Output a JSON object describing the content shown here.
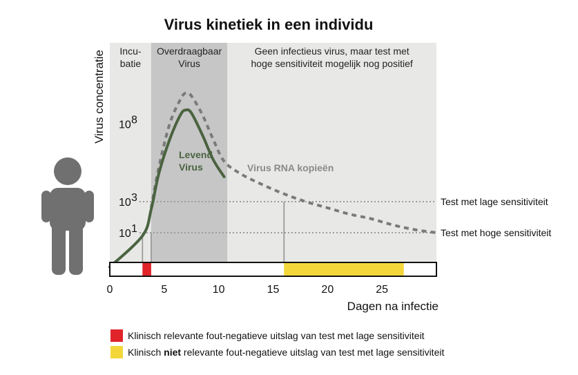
{
  "chart_data": {
    "type": "line",
    "title": "Virus kinetiek in een individu",
    "xlabel": "Dagen na infectie",
    "ylabel": "Virus concentratie",
    "xlim": [
      0,
      30
    ],
    "x_ticks": [
      0,
      5,
      10,
      15,
      20,
      25
    ],
    "y_ticks": [
      {
        "base": "10",
        "exp": "1",
        "log": 1
      },
      {
        "base": "10",
        "exp": "3",
        "log": 3
      },
      {
        "base": "10",
        "exp": "8",
        "log": 8
      }
    ],
    "phases": [
      {
        "lines": [
          "Incu-",
          "batie"
        ],
        "start": 0,
        "end": 3.8,
        "shade": "#e8e8e6"
      },
      {
        "lines": [
          "Overdraagbaar",
          "Virus"
        ],
        "start": 3.8,
        "end": 10.8,
        "shade": "#c6c6c6"
      },
      {
        "lines": [
          "Geen infectieus virus, maar test met",
          "hoge sensitiviteit mogelijk nog positief"
        ],
        "start": 10.8,
        "end": 30,
        "shade": "#e8e8e6"
      }
    ],
    "series": [
      {
        "name": "Levend Virus",
        "label_lines": [
          "Levend",
          "Virus"
        ],
        "style": "solid",
        "color": "#4a6340",
        "points": [
          [
            0,
            -1.2
          ],
          [
            3,
            0.8
          ],
          [
            3.8,
            2.5
          ],
          [
            4.5,
            4.8
          ],
          [
            5.5,
            7.0
          ],
          [
            6.5,
            8.6
          ],
          [
            7,
            8.9
          ],
          [
            7.5,
            8.7
          ],
          [
            8.5,
            7.3
          ],
          [
            9.5,
            5.7
          ],
          [
            10.5,
            4.6
          ]
        ]
      },
      {
        "name": "Virus RNA kopieën",
        "label_lines": [
          "Virus RNA kopieën"
        ],
        "style": "dashed",
        "color": "#7a7a7a",
        "points": [
          [
            3.8,
            2.6
          ],
          [
            4.5,
            5.2
          ],
          [
            5.5,
            8.0
          ],
          [
            6.5,
            9.6
          ],
          [
            7,
            10.0
          ],
          [
            7.5,
            9.8
          ],
          [
            8.5,
            8.6
          ],
          [
            9.5,
            7.0
          ],
          [
            10.5,
            5.6
          ],
          [
            12,
            4.8
          ],
          [
            14,
            4.1
          ],
          [
            16,
            3.5
          ],
          [
            18,
            3.0
          ],
          [
            20,
            2.6
          ],
          [
            22,
            2.2
          ],
          [
            24,
            1.9
          ],
          [
            26,
            1.5
          ],
          [
            28,
            1.2
          ],
          [
            30,
            1.0
          ]
        ]
      }
    ],
    "thresholds": [
      {
        "label": "Test met lage sensitiviteit",
        "value": 3
      },
      {
        "label": "Test met hoge sensitiviteit",
        "value": 1
      }
    ],
    "timeline": {
      "bands": [
        {
          "start": 3.0,
          "end": 3.8,
          "color": "#e0242a"
        },
        {
          "start": 16.0,
          "end": 27.0,
          "color": "#f3d73a"
        }
      ],
      "markers": [
        3.0,
        3.8,
        16.0
      ]
    },
    "legend": [
      {
        "color": "#e0242a",
        "pre": "Klinisch relevante fout-negatieve uitslag van test met lage sensitiviteit",
        "strong": "",
        "post": ""
      },
      {
        "color": "#f3d73a",
        "pre": "Klinisch ",
        "strong": "niet",
        "post": " relevante fout-negatieve uitslag van test met lage sensitiviteit"
      }
    ]
  }
}
